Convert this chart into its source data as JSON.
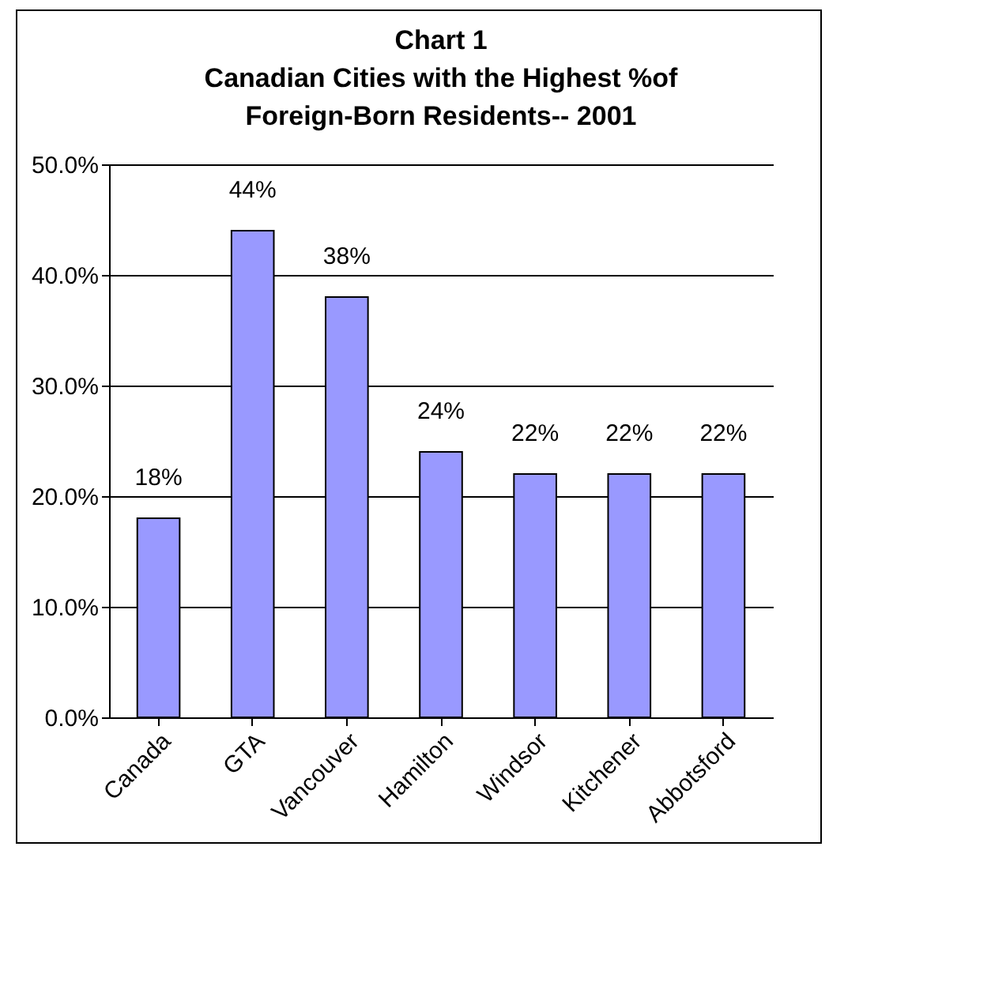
{
  "chart_data": {
    "type": "bar",
    "title": "Chart 1\nCanadian Cities with the Highest %of\nForeign-Born Residents-- 2001",
    "categories": [
      "Canada",
      "GTA",
      "Vancouver",
      "Hamilton",
      "Windsor",
      "Kitchener",
      "Abbotsford"
    ],
    "values": [
      18,
      44,
      38,
      24,
      22,
      22,
      22
    ],
    "value_labels": [
      "18%",
      "44%",
      "38%",
      "24%",
      "22%",
      "22%",
      "22%"
    ],
    "color": "#9999ff",
    "ylim": [
      0,
      50
    ],
    "yticks": [
      {
        "value": 0,
        "label": "0.0%"
      },
      {
        "value": 10,
        "label": "10.0%"
      },
      {
        "value": 20,
        "label": "20.0%"
      },
      {
        "value": 30,
        "label": "30.0%"
      },
      {
        "value": 40,
        "label": "40.0%"
      },
      {
        "value": 50,
        "label": "50.0%"
      }
    ],
    "grid": "y"
  }
}
